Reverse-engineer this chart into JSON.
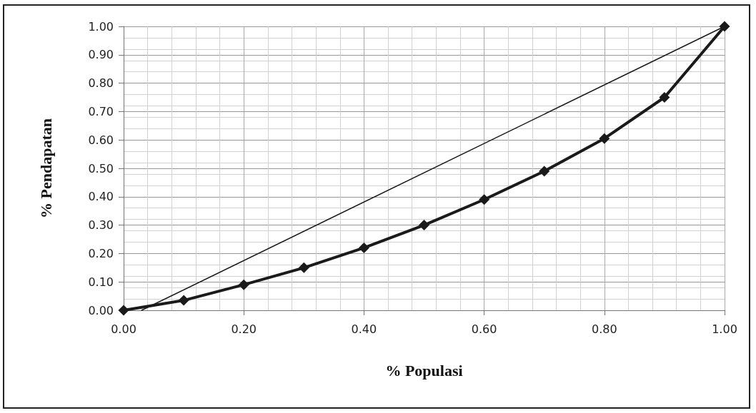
{
  "chart_data": {
    "type": "line",
    "xlabel": "% Populasi",
    "ylabel": "% Pendapatan",
    "series": [
      {
        "color": "#1a1a1a",
        "x": [
          0,
          0.1,
          0.2,
          0.3,
          0.4,
          0.5,
          0.6,
          0.7,
          0.8,
          0.9,
          1.0
        ],
        "values": [
          0,
          0.035,
          0.09,
          0.15,
          0.22,
          0.3,
          0.39,
          0.49,
          0.605,
          0.75,
          1.0
        ],
        "marker": "diamond"
      },
      {
        "color": "#1a1a1a",
        "x": [
          0.03,
          1.0
        ],
        "values": [
          0,
          1.0
        ],
        "marker": "none"
      }
    ],
    "xlim": [
      0,
      1
    ],
    "ylim": [
      0,
      1
    ],
    "xticks": [
      {
        "value": 0,
        "label": "0.00"
      },
      {
        "value": 0.2,
        "label": "0.20"
      },
      {
        "value": 0.4,
        "label": "0.40"
      },
      {
        "value": 0.6,
        "label": "0.60"
      },
      {
        "value": 0.8,
        "label": "0.80"
      },
      {
        "value": 1,
        "label": "1.00"
      }
    ],
    "yticks": [
      {
        "value": 0,
        "label": "0.00"
      },
      {
        "value": 0.1,
        "label": "0.10"
      },
      {
        "value": 0.2,
        "label": "0.20"
      },
      {
        "value": 0.3,
        "label": "0.30"
      },
      {
        "value": 0.4,
        "label": "0.40"
      },
      {
        "value": 0.5,
        "label": "0.50"
      },
      {
        "value": 0.6,
        "label": "0.60"
      },
      {
        "value": 0.7,
        "label": "0.70"
      },
      {
        "value": 0.8,
        "label": "0.80"
      },
      {
        "value": 0.9,
        "label": "0.90"
      },
      {
        "value": 1,
        "label": "1.00"
      }
    ],
    "grid": true,
    "line_style": "solid"
  }
}
